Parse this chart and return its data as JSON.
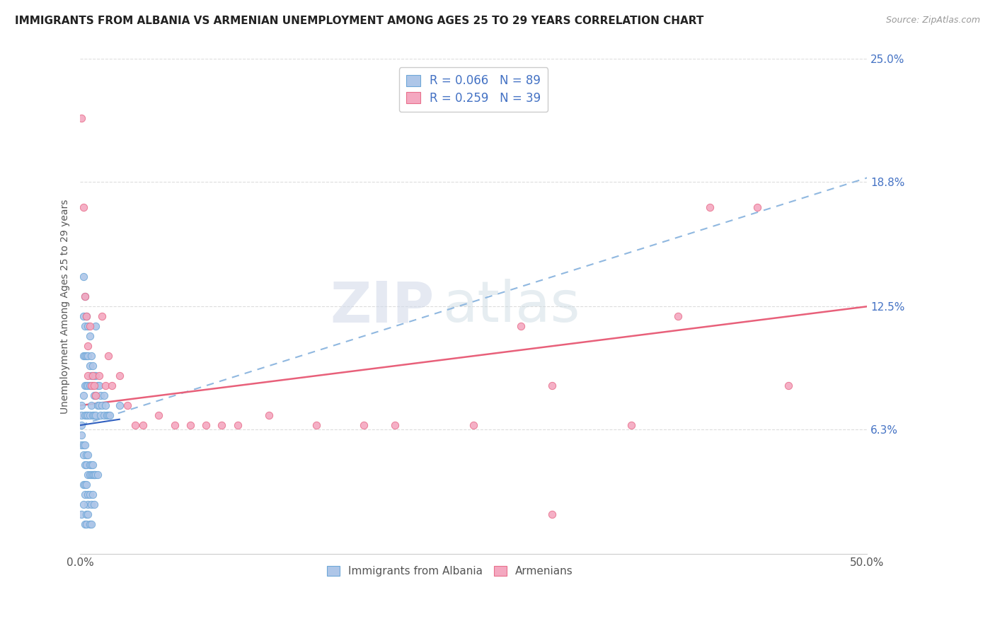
{
  "title": "IMMIGRANTS FROM ALBANIA VS ARMENIAN UNEMPLOYMENT AMONG AGES 25 TO 29 YEARS CORRELATION CHART",
  "source": "Source: ZipAtlas.com",
  "ylabel": "Unemployment Among Ages 25 to 29 years",
  "xlim": [
    0.0,
    0.5
  ],
  "ylim": [
    0.0,
    0.25
  ],
  "xtick_positions": [
    0.0,
    0.5
  ],
  "xticklabels": [
    "0.0%",
    "50.0%"
  ],
  "ytick_positions": [
    0.0,
    0.063,
    0.125,
    0.188,
    0.25
  ],
  "yticklabels": [
    "",
    "6.3%",
    "12.5%",
    "18.8%",
    "25.0%"
  ],
  "legend_R1": "R = 0.066",
  "legend_N1": "N = 89",
  "legend_R2": "R = 0.259",
  "legend_N2": "N = 39",
  "series1_label": "Immigrants from Albania",
  "series2_label": "Armenians",
  "series1_color": "#aec6e8",
  "series2_color": "#f4a8c0",
  "series1_edge_color": "#6fa8d8",
  "series2_edge_color": "#e8708c",
  "series1_line_color": "#90b8e0",
  "series2_line_color": "#e8607a",
  "watermark_zip": "ZIP",
  "watermark_atlas": "atlas",
  "background_color": "#ffffff",
  "grid_color": "#dddddd",
  "albania_x": [
    0.001,
    0.001,
    0.001,
    0.002,
    0.002,
    0.002,
    0.002,
    0.003,
    0.003,
    0.003,
    0.003,
    0.003,
    0.004,
    0.004,
    0.004,
    0.004,
    0.005,
    0.005,
    0.005,
    0.005,
    0.006,
    0.006,
    0.006,
    0.006,
    0.007,
    0.007,
    0.007,
    0.008,
    0.008,
    0.008,
    0.009,
    0.009,
    0.009,
    0.01,
    0.01,
    0.01,
    0.01,
    0.011,
    0.011,
    0.012,
    0.012,
    0.013,
    0.013,
    0.014,
    0.015,
    0.015,
    0.016,
    0.017,
    0.018,
    0.019,
    0.001,
    0.001,
    0.002,
    0.002,
    0.003,
    0.003,
    0.004,
    0.004,
    0.005,
    0.005,
    0.006,
    0.006,
    0.007,
    0.007,
    0.008,
    0.008,
    0.009,
    0.009,
    0.01,
    0.011,
    0.002,
    0.003,
    0.003,
    0.004,
    0.005,
    0.005,
    0.006,
    0.007,
    0.008,
    0.009,
    0.001,
    0.002,
    0.003,
    0.004,
    0.004,
    0.005,
    0.006,
    0.007,
    0.025
  ],
  "albania_y": [
    0.075,
    0.07,
    0.065,
    0.14,
    0.12,
    0.1,
    0.08,
    0.13,
    0.115,
    0.1,
    0.085,
    0.07,
    0.12,
    0.1,
    0.085,
    0.07,
    0.115,
    0.1,
    0.085,
    0.07,
    0.11,
    0.095,
    0.085,
    0.07,
    0.1,
    0.09,
    0.075,
    0.095,
    0.085,
    0.07,
    0.09,
    0.08,
    0.07,
    0.115,
    0.09,
    0.08,
    0.07,
    0.085,
    0.075,
    0.085,
    0.075,
    0.08,
    0.07,
    0.075,
    0.08,
    0.07,
    0.075,
    0.07,
    0.07,
    0.07,
    0.06,
    0.055,
    0.055,
    0.05,
    0.055,
    0.045,
    0.05,
    0.045,
    0.05,
    0.04,
    0.045,
    0.04,
    0.045,
    0.04,
    0.045,
    0.04,
    0.04,
    0.04,
    0.04,
    0.04,
    0.035,
    0.035,
    0.03,
    0.035,
    0.03,
    0.025,
    0.03,
    0.025,
    0.03,
    0.025,
    0.02,
    0.025,
    0.015,
    0.02,
    0.015,
    0.02,
    0.015,
    0.015,
    0.075
  ],
  "armenian_x": [
    0.001,
    0.002,
    0.003,
    0.004,
    0.005,
    0.005,
    0.006,
    0.007,
    0.008,
    0.009,
    0.01,
    0.012,
    0.014,
    0.016,
    0.018,
    0.02,
    0.025,
    0.03,
    0.035,
    0.04,
    0.05,
    0.06,
    0.07,
    0.08,
    0.09,
    0.1,
    0.12,
    0.15,
    0.18,
    0.2,
    0.25,
    0.28,
    0.3,
    0.35,
    0.38,
    0.4,
    0.43,
    0.45,
    0.3
  ],
  "armenian_y": [
    0.22,
    0.175,
    0.13,
    0.12,
    0.105,
    0.09,
    0.115,
    0.085,
    0.09,
    0.085,
    0.08,
    0.09,
    0.12,
    0.085,
    0.1,
    0.085,
    0.09,
    0.075,
    0.065,
    0.065,
    0.07,
    0.065,
    0.065,
    0.065,
    0.065,
    0.065,
    0.07,
    0.065,
    0.065,
    0.065,
    0.065,
    0.115,
    0.085,
    0.065,
    0.12,
    0.175,
    0.175,
    0.085,
    0.02
  ],
  "alb_trend_x": [
    0.0,
    0.5
  ],
  "alb_trend_y": [
    0.065,
    0.19
  ],
  "arm_trend_x": [
    0.0,
    0.5
  ],
  "arm_trend_y": [
    0.075,
    0.125
  ]
}
